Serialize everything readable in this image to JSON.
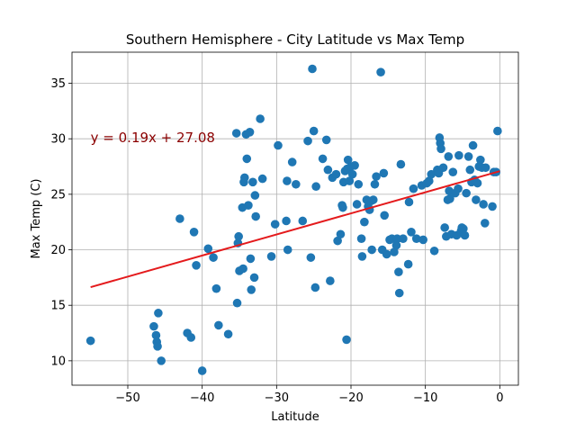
{
  "chart_data": {
    "type": "scatter",
    "title": "Southern Hemisphere - City Latitude vs Max Temp",
    "xlabel": "Latitude",
    "ylabel": "Max Temp (C)",
    "xlim": [
      -57.5,
      2.5
    ],
    "ylim": [
      7.8,
      37.8
    ],
    "xticks": [
      -50,
      -40,
      -30,
      -20,
      -10,
      0
    ],
    "yticks": [
      10,
      15,
      20,
      25,
      30,
      35
    ],
    "grid": true,
    "point_color": "#1f77b4",
    "line_color": "#e41a1c",
    "equation_text": "y = 0.19x + 27.08",
    "equation_position": {
      "x": -55,
      "y": 30.1
    },
    "regression": {
      "slope": 0.19,
      "intercept": 27.08,
      "x_range": [
        -55,
        0
      ]
    },
    "points": [
      [
        -55,
        11.8
      ],
      [
        -46.5,
        13.1
      ],
      [
        -46.2,
        12.3
      ],
      [
        -46.1,
        11.7
      ],
      [
        -46,
        11.3
      ],
      [
        -45.9,
        14.3
      ],
      [
        -45.5,
        10
      ],
      [
        -43,
        22.8
      ],
      [
        -42,
        12.5
      ],
      [
        -41.5,
        12.1
      ],
      [
        -41.1,
        21.6
      ],
      [
        -40.8,
        18.6
      ],
      [
        -40,
        9.1
      ],
      [
        -39.2,
        20.1
      ],
      [
        -38.5,
        19.3
      ],
      [
        -38.1,
        16.5
      ],
      [
        -37.8,
        13.2
      ],
      [
        -36.5,
        12.4
      ],
      [
        -35.4,
        30.5
      ],
      [
        -35.3,
        15.2
      ],
      [
        -35.2,
        20.6
      ],
      [
        -35.1,
        21.2
      ],
      [
        -35,
        18.1
      ],
      [
        -34.6,
        23.8
      ],
      [
        -34.5,
        18.3
      ],
      [
        -34.4,
        26.1
      ],
      [
        -34.3,
        26.5
      ],
      [
        -34.1,
        30.4
      ],
      [
        -34,
        28.2
      ],
      [
        -33.8,
        24
      ],
      [
        -33.6,
        30.6
      ],
      [
        -33.5,
        19.2
      ],
      [
        -33.4,
        16.4
      ],
      [
        -33.2,
        26.1
      ],
      [
        -33,
        17.5
      ],
      [
        -32.9,
        24.9
      ],
      [
        -32.8,
        23
      ],
      [
        -32.2,
        31.8
      ],
      [
        -31.9,
        26.4
      ],
      [
        -30.7,
        19.4
      ],
      [
        -30.2,
        22.3
      ],
      [
        -29.8,
        29.4
      ],
      [
        -28.7,
        22.6
      ],
      [
        -28.6,
        26.2
      ],
      [
        -28.5,
        20
      ],
      [
        -27.9,
        27.9
      ],
      [
        -27.4,
        25.9
      ],
      [
        -26.5,
        22.6
      ],
      [
        -25.8,
        29.8
      ],
      [
        -25.4,
        19.3
      ],
      [
        -25.2,
        36.3
      ],
      [
        -25,
        30.7
      ],
      [
        -24.8,
        16.6
      ],
      [
        -24.7,
        25.7
      ],
      [
        -23.8,
        28.2
      ],
      [
        -23.3,
        29.9
      ],
      [
        -23.1,
        27.2
      ],
      [
        -22.8,
        17.2
      ],
      [
        -22.5,
        26.5
      ],
      [
        -22,
        26.8
      ],
      [
        -21.8,
        20.8
      ],
      [
        -21.4,
        21.4
      ],
      [
        -21.2,
        24
      ],
      [
        -21.1,
        23.8
      ],
      [
        -21,
        26.1
      ],
      [
        -20.8,
        27.1
      ],
      [
        -20.6,
        11.9
      ],
      [
        -20.5,
        27.3
      ],
      [
        -20.4,
        28.1
      ],
      [
        -20.2,
        26.2
      ],
      [
        -20,
        27.5
      ],
      [
        -19.8,
        26.8
      ],
      [
        -19.5,
        27.6
      ],
      [
        -19.2,
        24.1
      ],
      [
        -19,
        25.9
      ],
      [
        -18.6,
        21
      ],
      [
        -18.5,
        19.4
      ],
      [
        -18.2,
        22.5
      ],
      [
        -17.9,
        24.5
      ],
      [
        -17.7,
        23.9
      ],
      [
        -17.5,
        23.6
      ],
      [
        -17.3,
        24.4
      ],
      [
        -17.2,
        20
      ],
      [
        -17,
        24.5
      ],
      [
        -16.8,
        25.9
      ],
      [
        -16.6,
        26.6
      ],
      [
        -16,
        36
      ],
      [
        -15.8,
        20
      ],
      [
        -15.6,
        26.9
      ],
      [
        -15.5,
        23.1
      ],
      [
        -15.2,
        19.6
      ],
      [
        -14.8,
        20.9
      ],
      [
        -14.5,
        21
      ],
      [
        -14.2,
        19.8
      ],
      [
        -13.9,
        20.4
      ],
      [
        -13.8,
        21
      ],
      [
        -13.6,
        18
      ],
      [
        -13.5,
        16.1
      ],
      [
        -13.3,
        27.7
      ],
      [
        -13,
        21
      ],
      [
        -12.3,
        18.7
      ],
      [
        -12.2,
        24.3
      ],
      [
        -11.9,
        21.6
      ],
      [
        -11.6,
        25.5
      ],
      [
        -11.2,
        21
      ],
      [
        -10.5,
        25.8
      ],
      [
        -10.3,
        20.9
      ],
      [
        -9.8,
        26
      ],
      [
        -9.5,
        26.2
      ],
      [
        -9.2,
        26.8
      ],
      [
        -8.8,
        19.9
      ],
      [
        -8.4,
        27.2
      ],
      [
        -8.2,
        26.9
      ],
      [
        -8.1,
        30.1
      ],
      [
        -8,
        29.6
      ],
      [
        -7.9,
        29.1
      ],
      [
        -7.6,
        27.4
      ],
      [
        -7.4,
        22
      ],
      [
        -7.2,
        21.2
      ],
      [
        -7,
        24.5
      ],
      [
        -6.9,
        28.4
      ],
      [
        -6.8,
        25.3
      ],
      [
        -6.7,
        24.6
      ],
      [
        -6.5,
        21.4
      ],
      [
        -6.3,
        27
      ],
      [
        -6,
        25.1
      ],
      [
        -5.8,
        21.3
      ],
      [
        -5.6,
        25.5
      ],
      [
        -5.5,
        28.5
      ],
      [
        -5.2,
        21.7
      ],
      [
        -5.1,
        22
      ],
      [
        -4.9,
        21.9
      ],
      [
        -4.7,
        21.3
      ],
      [
        -4.5,
        25.1
      ],
      [
        -4.2,
        28.4
      ],
      [
        -4,
        27.2
      ],
      [
        -3.8,
        26.1
      ],
      [
        -3.6,
        29.4
      ],
      [
        -3.4,
        26.3
      ],
      [
        -3.2,
        24.5
      ],
      [
        -3,
        26
      ],
      [
        -2.8,
        27.5
      ],
      [
        -2.6,
        28.1
      ],
      [
        -2.4,
        27.4
      ],
      [
        -2.2,
        24.1
      ],
      [
        -2,
        22.4
      ],
      [
        -1.9,
        27.4
      ],
      [
        -1,
        23.9
      ],
      [
        -0.8,
        27
      ],
      [
        -0.5,
        27
      ],
      [
        -0.3,
        30.7
      ]
    ]
  }
}
